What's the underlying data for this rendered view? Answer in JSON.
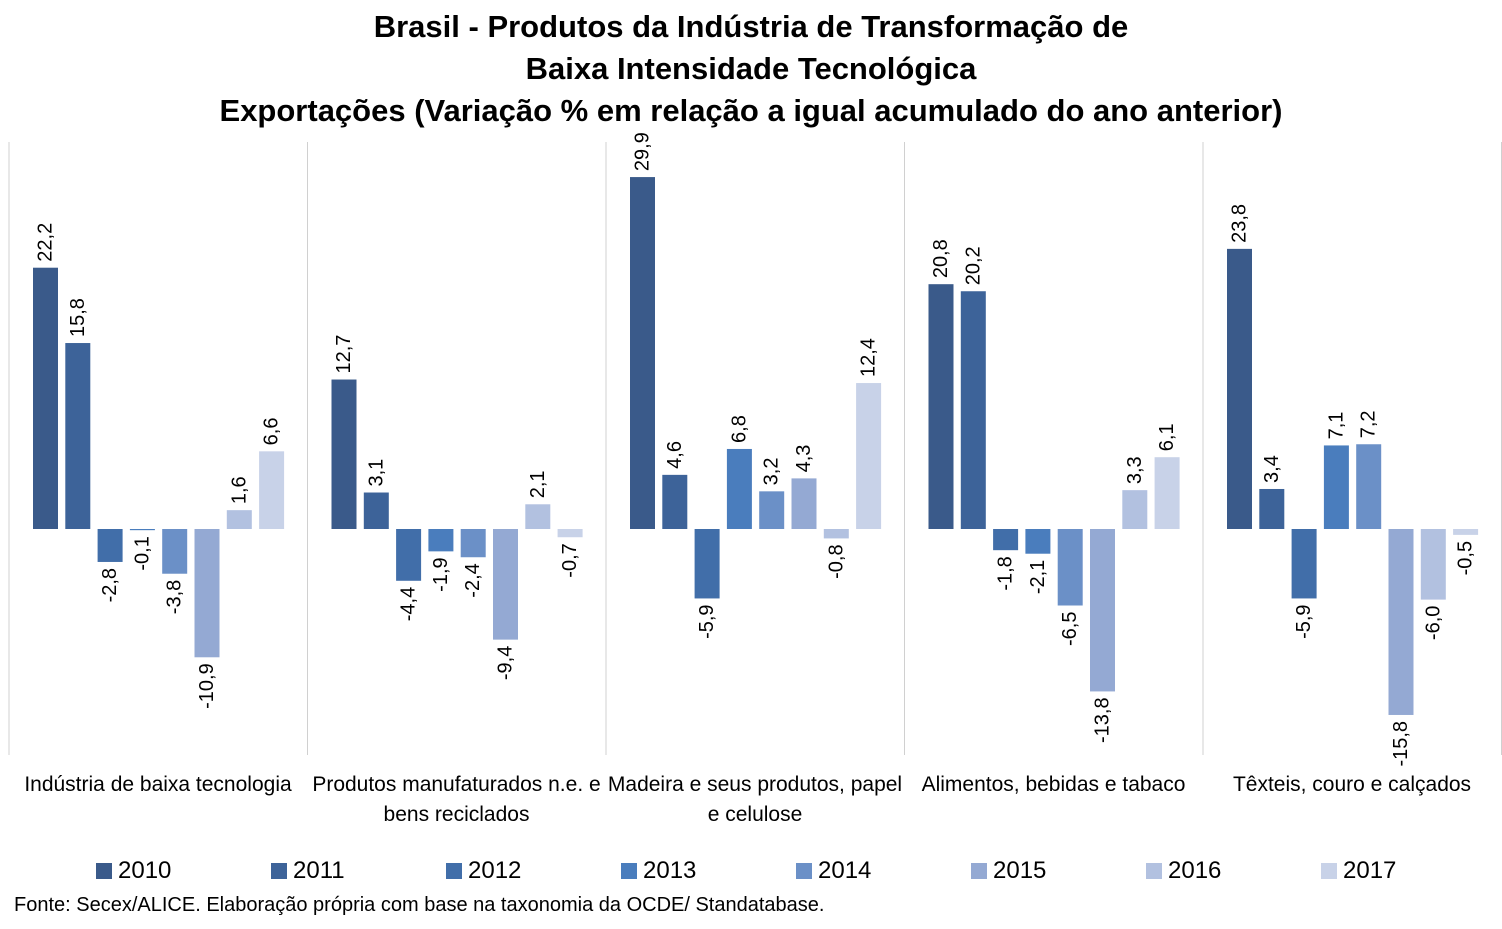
{
  "title_lines": [
    "Brasil - Produtos da Indústria de Transformação de",
    "Baixa Intensidade Tecnológica",
    "Exportações (Variação % em relação a igual acumulado do ano anterior)"
  ],
  "source": "Fonte: Secex/ALICE. Elaboração própria com base na taxonomia da OCDE/ Standatabase.",
  "chart_data": {
    "type": "bar",
    "categories": [
      "Indústria de baixa tecnologia",
      "Produtos manufaturados n.e. e bens reciclados",
      "Madeira e seus produtos, papel e celulose",
      "Alimentos, bebidas e tabaco",
      "Têxteis, couro e calçados"
    ],
    "series": [
      {
        "name": "2010",
        "color": "#3a5a8a",
        "values": [
          22.2,
          12.7,
          29.9,
          20.8,
          23.8
        ],
        "labels": [
          "22,2",
          "12,7",
          "29,9",
          "20,8",
          "23,8"
        ]
      },
      {
        "name": "2011",
        "color": "#3d6399",
        "values": [
          15.8,
          3.1,
          4.6,
          20.2,
          3.4
        ],
        "labels": [
          "15,8",
          "3,1",
          "4,6",
          "20,2",
          "3,4"
        ]
      },
      {
        "name": "2012",
        "color": "#416ea9",
        "values": [
          -2.8,
          -4.4,
          -5.9,
          -1.8,
          -5.9
        ],
        "labels": [
          "-2,8",
          "-4,4",
          "-5,9",
          "-1,8",
          "-5,9"
        ]
      },
      {
        "name": "2013",
        "color": "#4a7dbd",
        "values": [
          -0.1,
          -1.9,
          6.8,
          -2.1,
          7.1
        ],
        "labels": [
          "-0,1",
          "-1,9",
          "6,8",
          "-2,1",
          "7,1"
        ]
      },
      {
        "name": "2014",
        "color": "#6b90c7",
        "values": [
          -3.8,
          -2.4,
          3.2,
          -6.5,
          7.2
        ],
        "labels": [
          "-3,8",
          "-2,4",
          "3,2",
          "-6,5",
          "7,2"
        ]
      },
      {
        "name": "2015",
        "color": "#94a9d3",
        "values": [
          -10.9,
          -9.4,
          4.3,
          -13.8,
          -15.8
        ],
        "labels": [
          "-10,9",
          "-9,4",
          "4,3",
          "-13,8",
          "-15,8"
        ]
      },
      {
        "name": "2016",
        "color": "#b2c1e0",
        "values": [
          1.6,
          2.1,
          -0.8,
          3.3,
          -6.0
        ],
        "labels": [
          "1,6",
          "2,1",
          "-0,8",
          "3,3",
          "-6,0"
        ]
      },
      {
        "name": "2017",
        "color": "#c8d2e8",
        "values": [
          6.6,
          -0.7,
          12.4,
          6.1,
          -0.5
        ],
        "labels": [
          "6,6",
          "-0,7",
          "12,4",
          "6,1",
          "-0,5"
        ]
      }
    ],
    "ylim": [
      -19,
      33
    ],
    "grid": false,
    "legend_position": "bottom"
  }
}
